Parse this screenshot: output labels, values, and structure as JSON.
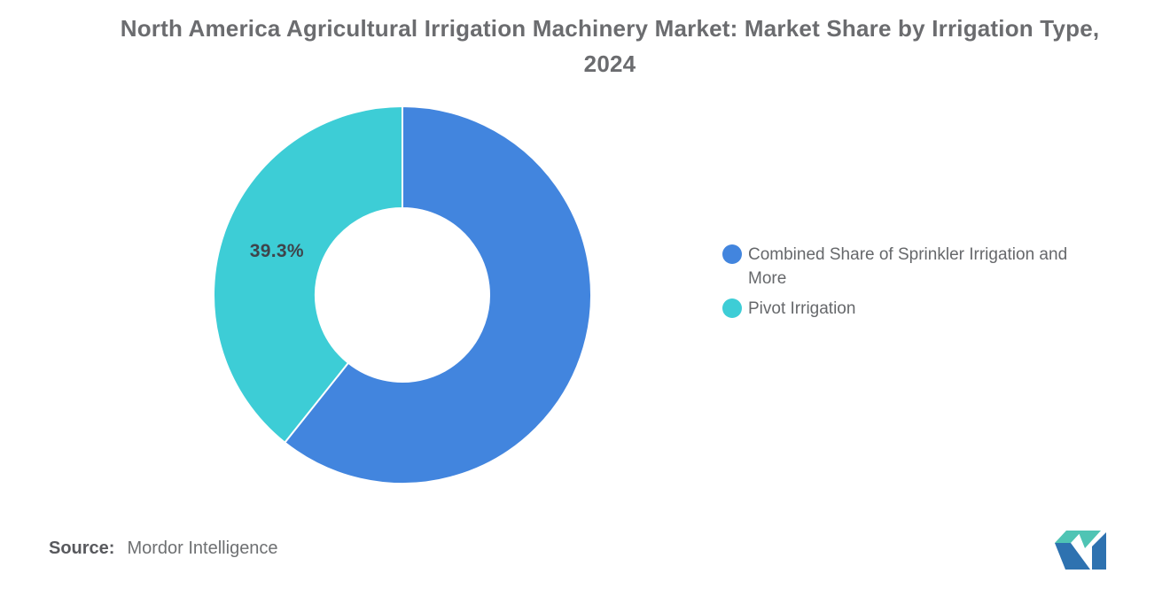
{
  "page": {
    "background": "#ffffff"
  },
  "title": "North America Agricultural Irrigation Machinery Market: Market Share by Irrigation Type, 2024",
  "chart_data": {
    "type": "pie",
    "subtype": "donut",
    "title": "North America Agricultural Irrigation Machinery Market: Market Share by Irrigation Type, 2024",
    "categories": [
      "Combined Share of Sprinkler Irrigation and More",
      "Pivot Irrigation"
    ],
    "values": [
      60.7,
      39.3
    ],
    "unit": "%",
    "colors": [
      "#4285DE",
      "#3DCDD6"
    ],
    "slice_labels": [
      "",
      "39.3%"
    ],
    "start_angle_deg": 0,
    "direction": "clockwise",
    "inner_radius_ratio": 0.46,
    "legend_position": "right",
    "label_color": "#3F444B",
    "grid": false
  },
  "legend": {
    "items": [
      {
        "label": "Combined Share of Sprinkler Irrigation and More",
        "color": "#4285DE"
      },
      {
        "label": "Pivot Irrigation",
        "color": "#3DCDD6"
      }
    ]
  },
  "source": {
    "prefix": "Source:",
    "name": "Mordor Intelligence"
  },
  "logo": {
    "name": "mordor-intelligence-logo",
    "blue": "#2E72B0",
    "teal": "#4FC4B4"
  }
}
